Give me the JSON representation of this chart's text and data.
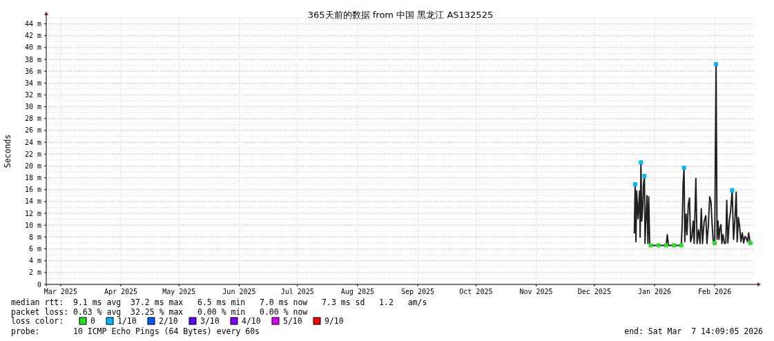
{
  "chart_data": {
    "type": "line",
    "title": "365天前的数据 from 中国 黑龙江 AS132525",
    "ylabel": "Seconds",
    "xlim": [
      "2025-03-07T14:09",
      "2026-03-07T14:09"
    ],
    "xticks": [
      {
        "value": "2025-03-15",
        "label": "Mar 2025"
      },
      {
        "value": "2025-04-15",
        "label": "Apr 2025"
      },
      {
        "value": "2025-05-15",
        "label": "May 2025"
      },
      {
        "value": "2025-06-15",
        "label": "Jun 2025"
      },
      {
        "value": "2025-07-15",
        "label": "Jul 2025"
      },
      {
        "value": "2025-08-15",
        "label": "Aug 2025"
      },
      {
        "value": "2025-09-15",
        "label": "Sep 2025"
      },
      {
        "value": "2025-10-15",
        "label": "Oct 2025"
      },
      {
        "value": "2025-11-15",
        "label": "Nov 2025"
      },
      {
        "value": "2025-12-15",
        "label": "Dec 2025"
      },
      {
        "value": "2026-01-15",
        "label": "Jan 2026"
      },
      {
        "value": "2026-02-15",
        "label": "Feb 2026"
      }
    ],
    "ylim": [
      0,
      45
    ],
    "yticks": [
      0,
      {
        "value": 2,
        "label": "2 m"
      },
      {
        "value": 4,
        "label": "4 m"
      },
      {
        "value": 6,
        "label": "6 m"
      },
      {
        "value": 8,
        "label": "8 m"
      },
      {
        "value": 10,
        "label": "10 m"
      },
      {
        "value": 12,
        "label": "12 m"
      },
      {
        "value": 14,
        "label": "14 m"
      },
      {
        "value": 16,
        "label": "16 m"
      },
      {
        "value": 18,
        "label": "18 m"
      },
      {
        "value": 20,
        "label": "20 m"
      },
      {
        "value": 22,
        "label": "22 m"
      },
      {
        "value": 24,
        "label": "24 m"
      },
      {
        "value": 26,
        "label": "26 m"
      },
      {
        "value": 28,
        "label": "28 m"
      },
      {
        "value": 30,
        "label": "30 m"
      },
      {
        "value": 32,
        "label": "32 m"
      },
      {
        "value": 34,
        "label": "34 m"
      },
      {
        "value": 36,
        "label": "36 m"
      },
      {
        "value": 38,
        "label": "38 m"
      },
      {
        "value": 40,
        "label": "40 m"
      },
      {
        "value": 42,
        "label": "42 m"
      },
      {
        "value": 44,
        "label": "44 m"
      }
    ],
    "grid": true,
    "legend": "bottom",
    "legend_title": "loss color:",
    "series": [
      {
        "color": "#202020",
        "x": [
          "2026-01-04T14:00",
          "2026-01-05T00:00",
          "2026-01-05T10:00",
          "2026-01-05T19:00",
          "2026-01-06T12:00",
          "2026-01-07T07:00",
          "2026-01-07T14:00",
          "2026-01-08T00:00",
          "2026-01-08T10:00",
          "2026-01-08T22:00",
          "2026-01-09T07:00",
          "2026-01-09T19:00",
          "2026-01-10T02:00",
          "2026-01-10T17:00",
          "2026-01-11T02:00",
          "2026-01-11T14:00",
          "2026-01-12T00:00",
          "2026-01-12T12:00",
          "2026-01-13T00:00",
          "2026-01-17T00:00",
          "2026-01-21T00:00",
          "2026-01-21T14:00",
          "2026-01-22T04:00",
          "2026-01-25T00:00",
          "2026-01-28T19:00",
          "2026-01-29T05:00",
          "2026-01-29T17:00",
          "2026-01-30T05:00",
          "2026-01-30T14:00",
          "2026-01-31T05:00",
          "2026-01-31T17:00",
          "2026-02-01T10:00",
          "2026-02-02T00:00",
          "2026-02-02T14:00",
          "2026-02-03T05:00",
          "2026-02-03T22:00",
          "2026-02-04T10:00",
          "2026-02-05T07:00",
          "2026-02-05T22:00",
          "2026-02-06T17:00",
          "2026-02-07T10:00",
          "2026-02-08T02:00",
          "2026-02-08T17:00",
          "2026-02-09T14:00",
          "2026-02-10T10:00",
          "2026-02-11T00:00",
          "2026-02-11T17:00",
          "2026-02-12T10:00",
          "2026-02-13T02:00",
          "2026-02-13T17:00",
          "2026-02-14T07:00",
          "2026-02-15T00:00",
          "2026-02-15T17:00",
          "2026-02-16T05:00",
          "2026-02-16T17:00",
          "2026-02-17T05:00",
          "2026-02-17T14:00",
          "2026-02-18T05:00",
          "2026-02-18T17:00",
          "2026-02-19T07:00",
          "2026-02-20T00:00",
          "2026-02-20T17:00",
          "2026-02-21T05:00",
          "2026-02-21T19:00",
          "2026-02-22T12:00",
          "2026-02-23T05:00",
          "2026-02-24T00:00",
          "2026-02-24T17:00",
          "2026-02-25T10:00",
          "2026-02-26T02:00",
          "2026-02-26T14:00",
          "2026-02-27T05:00",
          "2026-02-27T19:00",
          "2026-02-28T12:00",
          "2026-03-01T05:00",
          "2026-03-01T22:00",
          "2026-03-02T14:00",
          "2026-03-03T07:00",
          "2026-03-03T22:00",
          "2026-03-04T12:00",
          "2026-03-05T07:00",
          "2026-03-06T10:00"
        ],
        "values": [
          8.6,
          16.9,
          7.2,
          15.8,
          11.1,
          15.8,
          8.0,
          20.6,
          10.7,
          13.0,
          16.8,
          18.3,
          6.9,
          12.1,
          15.0,
          6.9,
          14.8,
          6.9,
          6.6,
          6.6,
          6.6,
          8.4,
          6.6,
          6.6,
          6.6,
          9.8,
          16.8,
          19.7,
          7.2,
          11.9,
          8.4,
          13.6,
          14.6,
          7.2,
          8.0,
          10.7,
          6.9,
          17.9,
          6.9,
          9.2,
          6.9,
          12.8,
          6.9,
          10.7,
          11.6,
          6.9,
          9.8,
          14.8,
          13.9,
          9.9,
          7.0,
          7.0,
          37.2,
          7.6,
          10.7,
          7.6,
          9.2,
          10.1,
          6.9,
          8.4,
          6.9,
          7.0,
          14.2,
          7.0,
          10.7,
          12.5,
          15.9,
          7.6,
          10.9,
          15.6,
          7.2,
          11.3,
          9.9,
          7.2,
          8.7,
          7.0,
          8.1,
          7.8,
          7.2,
          8.7,
          7.0,
          7.0
        ]
      },
      {
        "type": "scatter",
        "name": "0",
        "color": "#26e026",
        "marker": "square",
        "x": [
          "2026-01-13T00:00",
          "2026-01-17T00:00",
          "2026-01-21T00:00",
          "2026-01-25T00:00",
          "2026-01-28T19:00",
          "2026-02-15T00:00",
          "2026-03-05T07:00"
        ],
        "values": [
          6.6,
          6.6,
          6.6,
          6.6,
          6.6,
          7.0,
          7.0
        ]
      },
      {
        "type": "scatter",
        "name": "1/10",
        "color": "#00b8ff",
        "marker": "square",
        "x": [
          "2026-01-05T00:00",
          "2026-01-08T00:00",
          "2026-01-09T19:00",
          "2026-01-30T05:00",
          "2026-02-15T17:00",
          "2026-02-24T00:00"
        ],
        "values": [
          16.9,
          20.6,
          18.3,
          19.7,
          37.2,
          15.9
        ]
      },
      {
        "type": "scatter",
        "name": "2/10",
        "color": "#0059ff",
        "marker": "square"
      },
      {
        "type": "scatter",
        "name": "3/10",
        "color": "#5e00ff",
        "marker": "square"
      },
      {
        "type": "scatter",
        "name": "4/10",
        "color": "#7e00ff",
        "marker": "square"
      },
      {
        "type": "scatter",
        "name": "5/10",
        "color": "#dd00ff",
        "marker": "square"
      },
      {
        "type": "scatter",
        "name": "9/10",
        "color": "#ff0000",
        "marker": "square"
      }
    ],
    "annotations": [
      "median rtt:  9.1 ms avg  37.2 ms max   6.5 ms min   7.0 ms now   7.3 ms sd   1.2   am/s",
      "packet loss: 0.63 % avg  32.25 % max   0.00 % min   0.00 % now",
      "probe:       10 ICMP Echo Pings (64 Bytes) every 60s",
      "end: Sat Mar  7 14:09:05 2026"
    ]
  }
}
